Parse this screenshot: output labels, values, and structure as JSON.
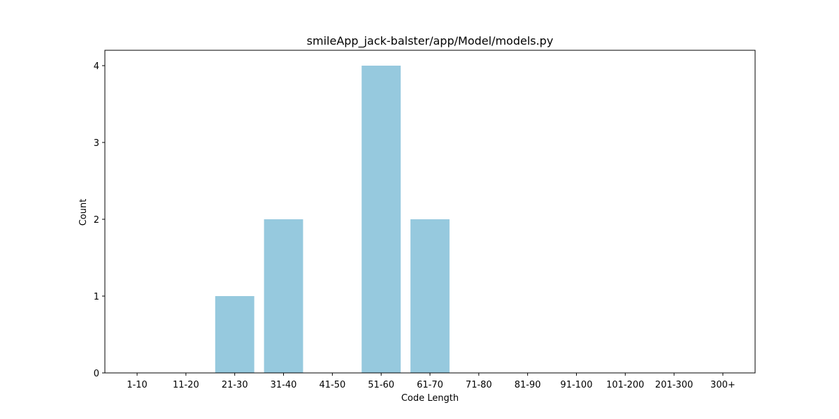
{
  "chart_data": {
    "type": "bar",
    "title": "smileApp_jack-balster/app/Model/models.py",
    "xlabel": "Code Length",
    "ylabel": "Count",
    "categories": [
      "1-10",
      "11-20",
      "21-30",
      "31-40",
      "41-50",
      "51-60",
      "61-70",
      "71-80",
      "81-90",
      "91-100",
      "101-200",
      "201-300",
      "300+"
    ],
    "values": [
      0,
      0,
      1,
      2,
      0,
      4,
      2,
      0,
      0,
      0,
      0,
      0,
      0
    ],
    "ylim": [
      0,
      4.2
    ],
    "yticks": [
      0,
      1,
      2,
      3,
      4
    ],
    "grid": false,
    "bar_color": "#96c9de"
  }
}
